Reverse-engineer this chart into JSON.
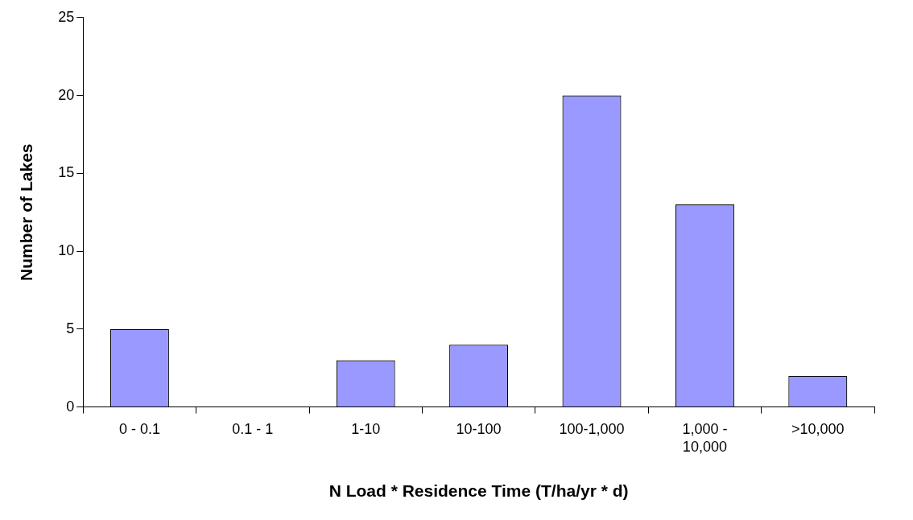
{
  "chart_data": {
    "type": "bar",
    "xlabel": "N Load * Residence Time (T/ha/yr * d)",
    "ylabel": "Number of Lakes",
    "categories": [
      "0 - 0.1",
      "0.1 - 1",
      "1-10",
      "10-100",
      "100-1,000",
      "1,000 - 10,000",
      ">10,000"
    ],
    "values": [
      5,
      0,
      3,
      4,
      20,
      13,
      2
    ],
    "color": "#9999ff",
    "ylim": [
      0,
      25
    ],
    "yticks": [
      0,
      5,
      10,
      15,
      20,
      25
    ],
    "grid": false,
    "legend": false
  }
}
